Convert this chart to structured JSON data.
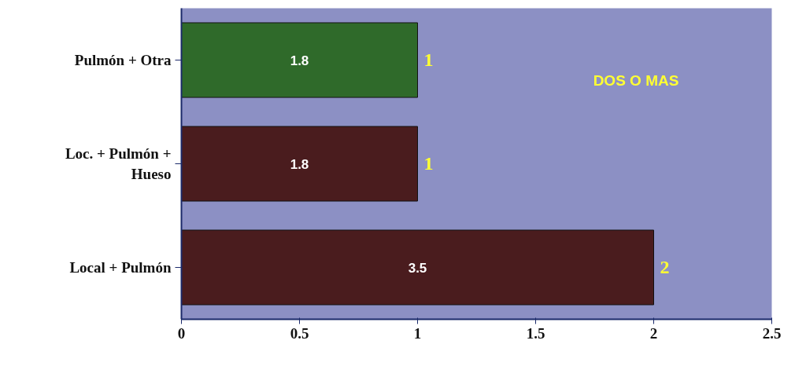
{
  "chart_data": {
    "type": "bar",
    "orientation": "horizontal",
    "categories": [
      "Pulmón + Otra",
      "Loc. + Pulmón + Hueso",
      "Local + Pulmón"
    ],
    "values": [
      1,
      1,
      2
    ],
    "colors": [
      "#2f6a2a",
      "#4a1c1e",
      "#4a1c1e"
    ],
    "data_labels": true,
    "annotations": [
      "1.8",
      "1.8",
      "3.5",
      "DOS O MAS"
    ],
    "xlim": [
      0,
      2.5
    ],
    "xticks": [
      0,
      0.5,
      1,
      1.5,
      2,
      2.5
    ],
    "grid": false
  }
}
